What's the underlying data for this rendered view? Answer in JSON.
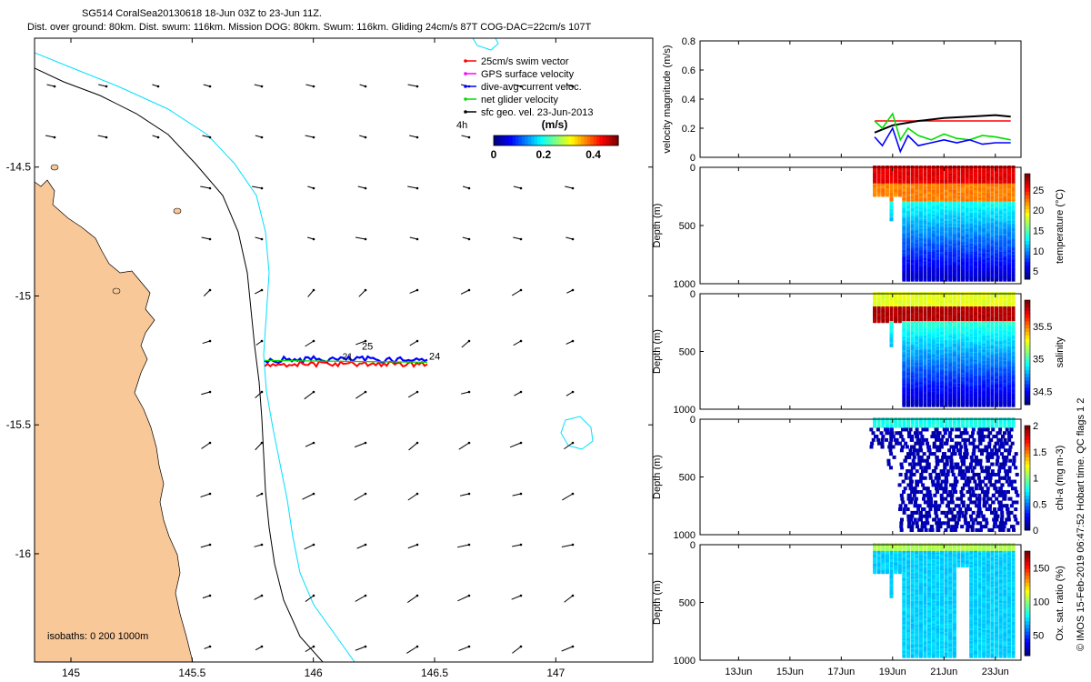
{
  "header": {
    "line1": "SG514 CoralSea20130618 18-Jun 03Z to 23-Jun 11Z.",
    "line2": "Dist. over ground: 80km. Dist. swum: 116km. Mission DOG: 80km. Swum: 116km. Gliding 24cm/s 87T COG-DAC=22cm/s 107T"
  },
  "map": {
    "x_ticks": [
      "145",
      "145.5",
      "146",
      "146.5",
      "147"
    ],
    "y_ticks": [
      "-14.5",
      "-15",
      "-15.5",
      "-16"
    ],
    "xlim": [
      144.85,
      147.4
    ],
    "ylim": [
      -16.42,
      -14.0
    ],
    "isobath_label": "isobaths: 0   200  1000m",
    "time_label": "4h",
    "legend": [
      {
        "label": "25cm/s swim vector",
        "color": "#ff0000"
      },
      {
        "label": "GPS surface velocity",
        "color": "#ff00ff"
      },
      {
        "label": "dive-avg current veloc.",
        "color": "#0000ff"
      },
      {
        "label": "net glider velocity",
        "color": "#00dd00"
      },
      {
        "label": "sfc geo. vel. 23-Jun-2013",
        "color": "#000000"
      }
    ],
    "colorbar": {
      "title": "(m/s)",
      "ticks": [
        "0",
        "0.2",
        "0.4"
      ]
    },
    "track_labels": [
      "25",
      "21",
      "24"
    ],
    "colors": {
      "land": "#f9c898",
      "isobath_200": "#000000",
      "isobath_1000": "#00e0ff"
    }
  },
  "chart_data": [
    {
      "type": "line",
      "ylabel": "velocity magnitude (m/s)",
      "ylim": [
        0,
        0.8
      ],
      "y_ticks": [
        "0",
        "0.2",
        "0.4",
        "0.6",
        "0.8"
      ],
      "x_ticks": [
        "13Jun",
        "15Jun",
        "17Jun",
        "19Jun",
        "21Jun",
        "23Jun"
      ],
      "series": [
        {
          "color": "#ff0000",
          "x": [
            18.3,
            19.0,
            20.0,
            21.0,
            22.0,
            23.0,
            23.6
          ],
          "values": [
            0.25,
            0.25,
            0.25,
            0.25,
            0.25,
            0.25,
            0.25
          ]
        },
        {
          "color": "#000000",
          "x": [
            18.3,
            19.0,
            20.0,
            21.0,
            22.0,
            23.0,
            23.6
          ],
          "values": [
            0.17,
            0.22,
            0.25,
            0.27,
            0.28,
            0.29,
            0.28
          ]
        },
        {
          "color": "#00dd00",
          "x": [
            18.3,
            18.6,
            19.0,
            19.3,
            19.6,
            20.0,
            20.5,
            21.0,
            21.5,
            22.0,
            22.5,
            23.0,
            23.6
          ],
          "values": [
            0.25,
            0.2,
            0.3,
            0.12,
            0.2,
            0.15,
            0.12,
            0.16,
            0.13,
            0.12,
            0.15,
            0.14,
            0.12
          ]
        },
        {
          "color": "#0000ff",
          "x": [
            18.3,
            18.6,
            19.0,
            19.3,
            19.6,
            20.0,
            20.5,
            21.0,
            21.5,
            22.0,
            22.5,
            23.0,
            23.6
          ],
          "values": [
            0.14,
            0.08,
            0.2,
            0.04,
            0.15,
            0.08,
            0.1,
            0.12,
            0.1,
            0.12,
            0.09,
            0.1,
            0.1
          ]
        }
      ]
    },
    {
      "type": "heatmap",
      "ylabel": "Depth (m)",
      "y_ticks": [
        "0",
        "500",
        "1000"
      ],
      "cbar_label": "temperature (°C)",
      "cbar_ticks": [
        "5",
        "10",
        "15",
        "20",
        "25"
      ],
      "cbar_range": [
        3,
        29
      ]
    },
    {
      "type": "heatmap",
      "ylabel": "Depth (m)",
      "y_ticks": [
        "0",
        "500",
        "1000"
      ],
      "cbar_label": "salinity",
      "cbar_ticks": [
        "34.5",
        "35",
        "35.5"
      ],
      "cbar_range": [
        34.3,
        35.9
      ]
    },
    {
      "type": "heatmap",
      "ylabel": "Depth (m)",
      "y_ticks": [
        "0",
        "500",
        "1000"
      ],
      "cbar_label": "chl-a (mg m-3)",
      "cbar_ticks": [
        "0",
        "0.5",
        "1",
        "1.5",
        "2"
      ],
      "cbar_range": [
        0,
        2
      ]
    },
    {
      "type": "heatmap",
      "ylabel": "Depth (m)",
      "y_ticks": [
        "0",
        "500",
        "1000"
      ],
      "cbar_label": "Ox. sat. ratio (%)",
      "cbar_ticks": [
        "50",
        "100",
        "150"
      ],
      "cbar_range": [
        20,
        175
      ]
    }
  ],
  "footer_vertical": "© IMOS 15-Feb-2019 06:47:52 Hobart time. QC flags 1  2"
}
